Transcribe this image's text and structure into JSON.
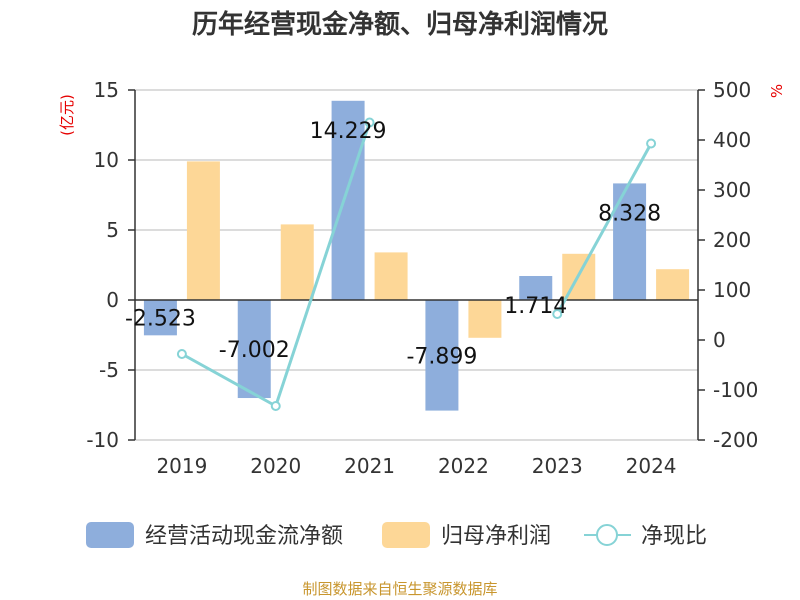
{
  "chart_data": {
    "type": "bar",
    "title": "历年经营现金净额、归母净利润情况",
    "categories": [
      "2019",
      "2020",
      "2021",
      "2022",
      "2023",
      "2024"
    ],
    "series": [
      {
        "name": "经营活动现金流净额",
        "type": "bar",
        "axis": "left",
        "values": [
          -2.523,
          -7.002,
          14.229,
          -7.899,
          1.714,
          8.328
        ]
      },
      {
        "name": "归母净利润",
        "type": "bar",
        "axis": "left",
        "values": [
          9.9,
          5.4,
          3.4,
          -2.7,
          3.3,
          2.2
        ]
      },
      {
        "name": "净现比",
        "type": "line",
        "axis": "right",
        "values": [
          -28,
          -132,
          435,
          null,
          52,
          393
        ]
      }
    ],
    "data_labels": [
      "-2.523",
      "-7.002",
      "14.229",
      "-7.899",
      "1.714",
      "8.328"
    ],
    "y_left": {
      "unit": "(亿元)",
      "ticks": [
        "15",
        "10",
        "5",
        "0",
        "-5",
        "-10"
      ],
      "lim": [
        -10,
        15
      ]
    },
    "y_right": {
      "unit": "%",
      "ticks": [
        "500",
        "400",
        "300",
        "200",
        "100",
        "0",
        "-100",
        "-200"
      ],
      "lim": [
        -200,
        500
      ]
    },
    "grid": true,
    "legend_position": "bottom",
    "colors": {
      "cash": "#8eaedc",
      "profit": "#fdd797",
      "ratio": "#86d3d6"
    },
    "source": "制图数据来自恒生聚源数据库"
  }
}
